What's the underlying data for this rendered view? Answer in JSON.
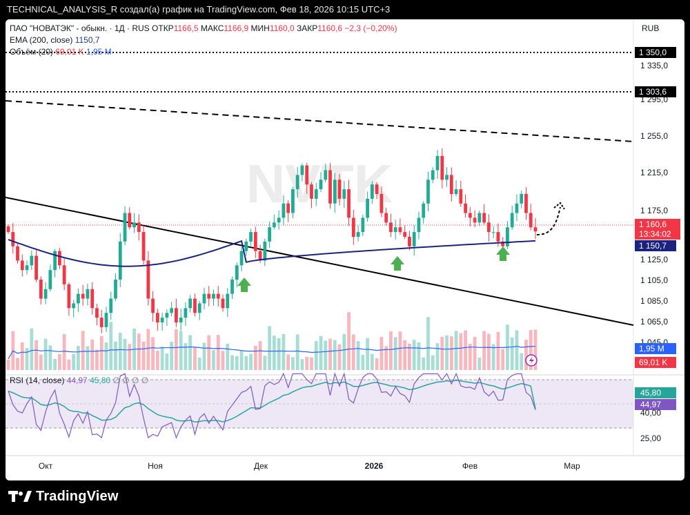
{
  "topbar": {
    "text": "TECHNICAL_ANALYSIS_R создал(а) график на TradingView.com, Фев 18, 2026 10:15 UTC+3"
  },
  "header": {
    "symbol": "ПАО \"НОВАТЭК\" - обыкн. · 1Д · RUS",
    "open_label": "ОТКР",
    "open": "1166,5",
    "high_label": "МАКС",
    "high": "1166,9",
    "low_label": "МИН",
    "low": "1160,0",
    "close_label": "ЗАКР",
    "close": "1160,6",
    "change": "−2,3 (−0,20%)",
    "currency": "RUB",
    "ema_label": "EMA (200, close)",
    "ema_value": "1150,7",
    "volume_label": "Объём (20)",
    "volume_value": "69,01 K",
    "volume_ma_value": "1,95 M",
    "rsi_label": "RSI (14, close)",
    "rsi_value": "44,97",
    "rsi_ma_value": "45,80",
    "rsi_extra": "∅ ∅ ∅ ∅"
  },
  "watermark": "NVTK",
  "price_axis": {
    "ticks": [
      "1 335,0",
      "1 295,0",
      "1 255,0",
      "1 215,0",
      "1 175,0",
      "1 125,0",
      "1 105,0",
      "1 085,0",
      "1 065,0",
      "1 045,0"
    ],
    "level_labels": [
      "1 350,0",
      "1 303,6"
    ],
    "last_price_label": "1 160,6",
    "countdown_label": "13:34:02",
    "ema_label": "1 150,7",
    "volume_ma_label": "1,95 M",
    "volume_label": "69,01 K"
  },
  "rsi_axis": {
    "ticks": [
      "40,00",
      "25,00"
    ],
    "ma_label": "45,80",
    "rsi_label": "44,97"
  },
  "time_axis": {
    "labels": [
      "Окт",
      "Ноя",
      "Дек",
      "2026",
      "Фев",
      "Мар"
    ]
  },
  "footer": {
    "brand": "TradingView"
  },
  "colors": {
    "up": "#22ab94",
    "down": "#f23645",
    "ema": "#1a237e",
    "volume_ma": "#2962ff",
    "rsi": "#7e57c2",
    "rsi_ma": "#26a69a",
    "rsi_band": "#ede7f6",
    "arrow": "#4caf50"
  },
  "chart_data": {
    "type": "candlestick",
    "title": "ПАО \"НОВАТЭК\" - обыкн. · 1Д · RUS",
    "ylabel": "RUB",
    "y_axis_scale": "linear",
    "ylim": [
      1042,
      1360
    ],
    "x_labels": [
      "Окт",
      "Ноя",
      "Дек",
      "2026",
      "Фев",
      "Мар"
    ],
    "horizontal_levels": [
      1350.0,
      1303.6
    ],
    "last_price": 1160.6,
    "ema200_last": 1150.7,
    "closes_approx": [
      1160,
      1145,
      1130,
      1120,
      1125,
      1135,
      1110,
      1090,
      1100,
      1120,
      1140,
      1125,
      1105,
      1080,
      1085,
      1095,
      1090,
      1100,
      1080,
      1070,
      1060,
      1075,
      1090,
      1110,
      1150,
      1180,
      1165,
      1170,
      1160,
      1130,
      1090,
      1075,
      1065,
      1070,
      1075,
      1080,
      1065,
      1070,
      1080,
      1090,
      1075,
      1085,
      1095,
      1090,
      1095,
      1090,
      1080,
      1095,
      1110,
      1125,
      1140,
      1150,
      1160,
      1140,
      1130,
      1150,
      1165,
      1170,
      1175,
      1190,
      1180,
      1205,
      1220,
      1230,
      1210,
      1195,
      1205,
      1215,
      1225,
      1190,
      1215,
      1195,
      1205,
      1175,
      1155,
      1160,
      1175,
      1195,
      1210,
      1200,
      1180,
      1170,
      1160,
      1165,
      1160,
      1155,
      1145,
      1160,
      1175,
      1190,
      1215,
      1225,
      1240,
      1215,
      1220,
      1200,
      1205,
      1190,
      1180,
      1175,
      1170,
      1180,
      1170,
      1160,
      1160,
      1150,
      1145,
      1165,
      1180,
      1190,
      1200,
      1180,
      1165,
      1160.6
    ],
    "rsi_last": 44.97,
    "rsi_ma_last": 45.8,
    "volume_last": "69,01 K",
    "volume_ma_last": "1,95 M"
  }
}
